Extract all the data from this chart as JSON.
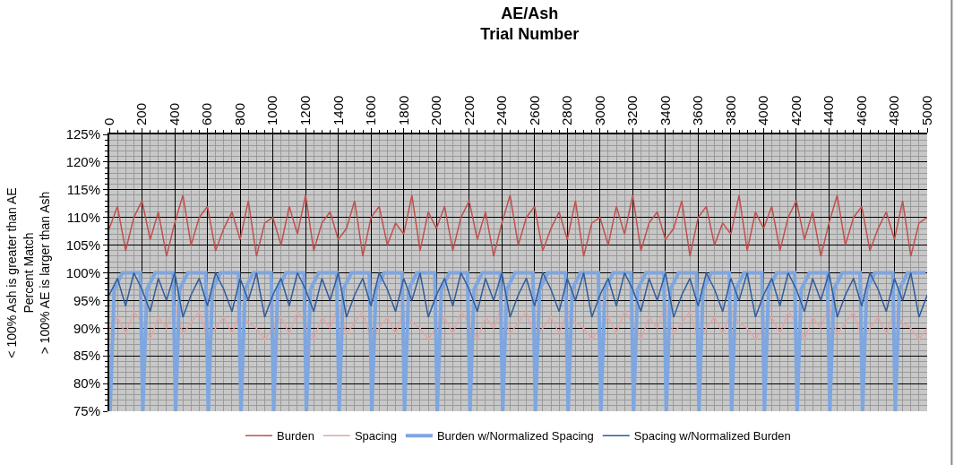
{
  "chart_data": {
    "type": "line",
    "title": "AE/Ash",
    "xlabel": "Trial Number",
    "ylabel": "< 100% Ash is greater than AE\nPercent Match\n> 100% AE is larger than Ash",
    "x": [
      0,
      50,
      100,
      150,
      200,
      250,
      300,
      350,
      400,
      450,
      500,
      550,
      600,
      650,
      700,
      750,
      800,
      850,
      900,
      950,
      1000,
      1050,
      1100,
      1150,
      1200,
      1250,
      1300,
      1350,
      1400,
      1450,
      1500,
      1550,
      1600,
      1650,
      1700,
      1750,
      1800,
      1850,
      1900,
      1950,
      2000,
      2050,
      2100,
      2150,
      2200,
      2250,
      2300,
      2350,
      2400,
      2450,
      2500,
      2550,
      2600,
      2650,
      2700,
      2750,
      2800,
      2850,
      2900,
      2950,
      3000,
      3050,
      3100,
      3150,
      3200,
      3250,
      3300,
      3350,
      3400,
      3450,
      3500,
      3550,
      3600,
      3650,
      3700,
      3750,
      3800,
      3850,
      3900,
      3950,
      4000,
      4050,
      4100,
      4150,
      4200,
      4250,
      4300,
      4350,
      4400,
      4450,
      4500,
      4550,
      4600,
      4650,
      4700,
      4750,
      4800,
      4850,
      4900,
      4950,
      5000
    ],
    "series": [
      {
        "name": "Burden",
        "color": "#c0504d",
        "values": [
          108,
          112,
          104,
          110,
          113,
          106,
          111,
          103,
          109,
          114,
          105,
          110,
          112,
          104,
          108,
          111,
          106,
          113,
          103,
          109,
          110,
          105,
          112,
          107,
          114,
          104,
          109,
          111,
          106,
          108,
          113,
          103,
          110,
          112,
          105,
          109,
          107,
          114,
          104,
          111,
          108,
          112,
          104,
          110,
          113,
          106,
          111,
          103,
          109,
          114,
          105,
          110,
          112,
          104,
          108,
          111,
          106,
          113,
          103,
          109,
          110,
          105,
          112,
          107,
          114,
          104,
          109,
          111,
          106,
          108,
          113,
          103,
          110,
          112,
          105,
          109,
          107,
          114,
          104,
          111,
          108,
          112,
          104,
          110,
          113,
          106,
          111,
          103,
          109,
          114,
          105,
          110,
          112,
          104,
          108,
          111,
          106,
          113,
          103,
          109,
          110
        ]
      },
      {
        "name": "Spacing",
        "color": "#e6a5a3",
        "values": [
          90,
          92,
          89,
          93,
          91,
          88,
          92,
          90,
          94,
          89,
          91,
          93,
          88,
          90,
          92,
          89,
          93,
          91,
          90,
          88,
          90,
          92,
          89,
          93,
          91,
          88,
          92,
          90,
          94,
          89,
          91,
          93,
          88,
          90,
          92,
          89,
          93,
          91,
          90,
          88,
          90,
          92,
          89,
          93,
          91,
          88,
          92,
          90,
          94,
          89,
          91,
          93,
          88,
          90,
          92,
          89,
          93,
          91,
          90,
          88,
          90,
          92,
          89,
          93,
          91,
          88,
          92,
          90,
          94,
          89,
          91,
          93,
          88,
          90,
          92,
          89,
          93,
          91,
          90,
          88,
          90,
          92,
          89,
          93,
          91,
          88,
          92,
          90,
          94,
          89,
          91,
          93,
          88,
          90,
          92,
          89,
          93,
          91,
          90,
          88,
          90
        ]
      },
      {
        "name": "Burden w/Normalized Spacing",
        "color": "#7ea6e0",
        "x": [
          5,
          30,
          80,
          190,
          205,
          230,
          280,
          390,
          405,
          430,
          480,
          590,
          605,
          630,
          680,
          790,
          805,
          830,
          880,
          990,
          1005,
          1030,
          1080,
          1190,
          1205,
          1230,
          1280,
          1390,
          1405,
          1430,
          1480,
          1590,
          1605,
          1630,
          1680,
          1790,
          1805,
          1830,
          1880,
          1990,
          2005,
          2030,
          2080,
          2190,
          2205,
          2230,
          2280,
          2390,
          2405,
          2430,
          2480,
          2590,
          2605,
          2630,
          2680,
          2790,
          2805,
          2830,
          2880,
          2990,
          3005,
          3030,
          3080,
          3190,
          3205,
          3230,
          3280,
          3390,
          3405,
          3430,
          3480,
          3590,
          3605,
          3630,
          3680,
          3790,
          3805,
          3830,
          3880,
          3990,
          4005,
          4030,
          4080,
          4190,
          4205,
          4230,
          4280,
          4390,
          4405,
          4430,
          4480,
          4590,
          4605,
          4630,
          4680,
          4790,
          4805,
          4830,
          4880,
          4990
        ],
        "values": [
          75,
          97,
          100,
          100,
          75,
          97,
          100,
          100,
          75,
          97,
          100,
          100,
          75,
          97,
          100,
          100,
          75,
          97,
          100,
          100,
          75,
          97,
          100,
          100,
          75,
          97,
          100,
          100,
          75,
          97,
          100,
          100,
          75,
          97,
          100,
          100,
          75,
          97,
          100,
          100,
          75,
          97,
          100,
          100,
          75,
          97,
          100,
          100,
          75,
          97,
          100,
          100,
          75,
          97,
          100,
          100,
          75,
          97,
          100,
          100,
          75,
          97,
          100,
          100,
          75,
          97,
          100,
          100,
          75,
          97,
          100,
          100,
          75,
          97,
          100,
          100,
          75,
          97,
          100,
          100,
          75,
          97,
          100,
          100,
          75,
          97,
          100,
          100,
          75,
          97,
          100,
          100,
          75,
          97,
          100,
          100,
          75,
          97,
          100,
          100
        ]
      },
      {
        "name": "Spacing w/Normalized Burden",
        "color": "#2e5c9e",
        "values": [
          96,
          99,
          94,
          100,
          97,
          93,
          99,
          95,
          100,
          92,
          96,
          99,
          94,
          100,
          97,
          93,
          99,
          95,
          100,
          92,
          96,
          99,
          94,
          100,
          97,
          93,
          99,
          95,
          100,
          92,
          96,
          99,
          94,
          100,
          97,
          93,
          99,
          95,
          100,
          92,
          96,
          99,
          94,
          100,
          97,
          93,
          99,
          95,
          100,
          92,
          96,
          99,
          94,
          100,
          97,
          93,
          99,
          95,
          100,
          92,
          96,
          99,
          94,
          100,
          97,
          93,
          99,
          95,
          100,
          92,
          96,
          99,
          94,
          100,
          97,
          93,
          99,
          95,
          100,
          92,
          96,
          99,
          94,
          100,
          97,
          93,
          99,
          95,
          100,
          92,
          96,
          99,
          94,
          100,
          97,
          93,
          99,
          95,
          100,
          92,
          96
        ]
      }
    ],
    "xlim": [
      0,
      5000
    ],
    "xticks": [
      0,
      200,
      400,
      600,
      800,
      1000,
      1200,
      1400,
      1600,
      1800,
      2000,
      2200,
      2400,
      2600,
      2800,
      3000,
      3200,
      3400,
      3600,
      3800,
      4000,
      4200,
      4400,
      4600,
      4800,
      5000
    ],
    "ylim": [
      75,
      125
    ],
    "yticks": [
      {
        "value": 75,
        "label": "75%"
      },
      {
        "value": 80,
        "label": "80%"
      },
      {
        "value": 85,
        "label": "85%"
      },
      {
        "value": 90,
        "label": "90%"
      },
      {
        "value": 95,
        "label": "95%"
      },
      {
        "value": 100,
        "label": "100%"
      },
      {
        "value": 105,
        "label": "105%"
      },
      {
        "value": 110,
        "label": "110%"
      },
      {
        "value": 115,
        "label": "115%"
      },
      {
        "value": 120,
        "label": "120%"
      },
      {
        "value": 125,
        "label": "125%"
      }
    ],
    "grid": true,
    "legend": "bottom",
    "marker": "none",
    "line_style": "solid"
  }
}
